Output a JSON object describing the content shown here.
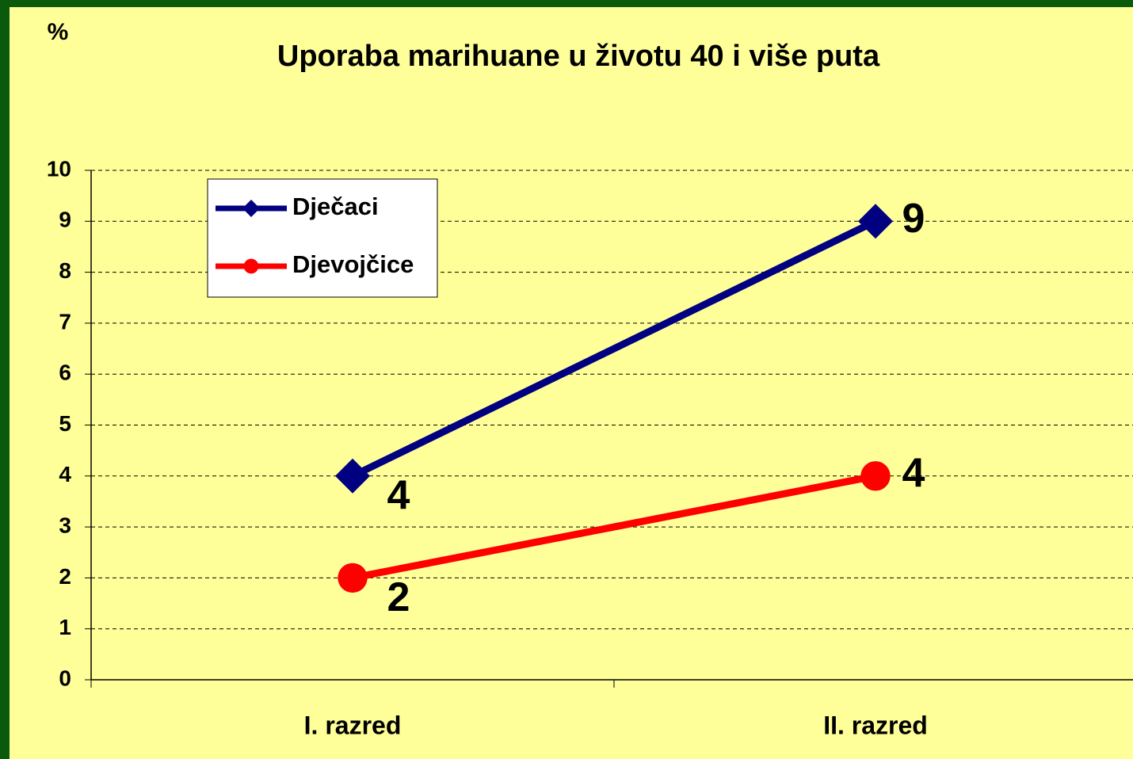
{
  "chart_data": {
    "type": "line",
    "title": "Uporaba marihuane u životu 40 i više puta",
    "y_label": "%",
    "categories": [
      "I. razred",
      "II.  razred"
    ],
    "series": [
      {
        "name": "Dječaci",
        "color": "#000080",
        "marker": "diamond",
        "values": [
          4,
          9
        ]
      },
      {
        "name": "Djevojčice",
        "color": "#ff0000",
        "marker": "circle",
        "values": [
          2,
          4
        ]
      }
    ],
    "ylim": [
      0,
      10
    ],
    "yticks": [
      0,
      1,
      2,
      3,
      4,
      5,
      6,
      7,
      8,
      9,
      10
    ],
    "grid": true,
    "legend": "top-left"
  }
}
